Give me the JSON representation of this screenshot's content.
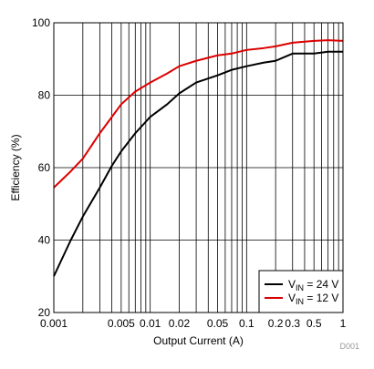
{
  "chart_data": {
    "type": "line",
    "title": "",
    "xlabel": "Output Current (A)",
    "ylabel": "Efficiency (%)",
    "xscale": "log",
    "xlim": [
      0.001,
      1
    ],
    "ylim": [
      20,
      100
    ],
    "grid": true,
    "legend_position": "bottom-right",
    "x_ticks": [
      0.001,
      0.005,
      0.01,
      0.02,
      0.05,
      0.1,
      0.2,
      0.3,
      0.5,
      1
    ],
    "x_tick_labels": [
      "0.001",
      "0.005",
      "0.01",
      "0.02",
      "0.05",
      "0.1",
      "0.2",
      "0.3",
      "0.5",
      "1"
    ],
    "y_ticks": [
      20,
      40,
      60,
      80,
      100
    ],
    "y_tick_labels": [
      "20",
      "40",
      "60",
      "80",
      "100"
    ],
    "footnote": "D001",
    "series": [
      {
        "name_main": "V",
        "name_sub": "IN",
        "name_rest": " = 24 V",
        "color": "#000000",
        "x": [
          0.001,
          0.0015,
          0.002,
          0.003,
          0.004,
          0.005,
          0.007,
          0.01,
          0.015,
          0.02,
          0.03,
          0.05,
          0.07,
          0.1,
          0.15,
          0.2,
          0.3,
          0.5,
          0.7,
          1
        ],
        "y": [
          30,
          40,
          46.5,
          54.5,
          60.5,
          64.5,
          69.5,
          74,
          77.5,
          80.5,
          83.5,
          85.5,
          87,
          88,
          89,
          89.5,
          91.5,
          91.5,
          92,
          92
        ]
      },
      {
        "name_main": "V",
        "name_sub": "IN",
        "name_rest": " = 12 V",
        "color": "#dd0000",
        "x": [
          0.001,
          0.0015,
          0.002,
          0.003,
          0.004,
          0.005,
          0.007,
          0.01,
          0.015,
          0.02,
          0.03,
          0.05,
          0.07,
          0.1,
          0.15,
          0.2,
          0.3,
          0.5,
          0.7,
          1
        ],
        "y": [
          54.5,
          59,
          62.5,
          69.5,
          74,
          77.5,
          81,
          83.5,
          86,
          88,
          89.5,
          91,
          91.5,
          92.5,
          93,
          93.5,
          94.5,
          95,
          95.2,
          95
        ]
      }
    ]
  }
}
